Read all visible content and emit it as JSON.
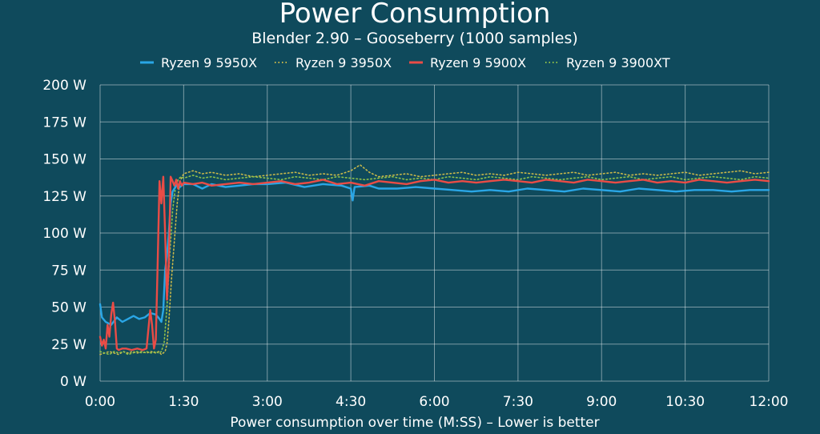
{
  "chart_data": {
    "type": "line",
    "title": "Power Consumption",
    "subtitle": "Blender 2.90 – Gooseberry (1000 samples)",
    "xlabel": "Power consumption over time (M:SS) – Lower is better",
    "ylabel": "",
    "xlim": [
      0,
      720
    ],
    "ylim": [
      0,
      200
    ],
    "grid": true,
    "legend_position": "top",
    "x_ticks": [
      {
        "value": 0,
        "label": "0:00"
      },
      {
        "value": 90,
        "label": "1:30"
      },
      {
        "value": 180,
        "label": "3:00"
      },
      {
        "value": 270,
        "label": "4:30"
      },
      {
        "value": 360,
        "label": "6:00"
      },
      {
        "value": 450,
        "label": "7:30"
      },
      {
        "value": 540,
        "label": "9:00"
      },
      {
        "value": 630,
        "label": "10:30"
      },
      {
        "value": 720,
        "label": "12:00"
      }
    ],
    "y_ticks": [
      {
        "value": 0,
        "label": "0 W"
      },
      {
        "value": 25,
        "label": "25 W"
      },
      {
        "value": 50,
        "label": "50 W"
      },
      {
        "value": 75,
        "label": "75 W"
      },
      {
        "value": 100,
        "label": "100 W"
      },
      {
        "value": 125,
        "label": "125 W"
      },
      {
        "value": 150,
        "label": "150 W"
      },
      {
        "value": 175,
        "label": "175 W"
      },
      {
        "value": 200,
        "label": "200 W"
      }
    ],
    "series": [
      {
        "name": "Ryzen 9 5950X",
        "color": "#2aa6e6",
        "style": "solid",
        "x": [
          0,
          2,
          6,
          12,
          18,
          24,
          30,
          36,
          42,
          48,
          54,
          60,
          64,
          66,
          68,
          70,
          72,
          74,
          76,
          78,
          80,
          83,
          86,
          90,
          100,
          110,
          120,
          135,
          150,
          165,
          180,
          200,
          220,
          240,
          260,
          270,
          272,
          274,
          290,
          300,
          320,
          340,
          360,
          380,
          400,
          420,
          440,
          460,
          480,
          500,
          520,
          540,
          560,
          580,
          600,
          620,
          640,
          660,
          680,
          700,
          720
        ],
        "y": [
          52,
          43,
          40,
          38,
          43,
          40,
          42,
          44,
          42,
          43,
          46,
          45,
          42,
          40,
          48,
          75,
          85,
          100,
          120,
          128,
          130,
          133,
          131,
          133,
          133,
          130,
          133,
          131,
          132,
          133,
          133,
          134,
          131,
          133,
          132,
          130,
          122,
          131,
          132,
          130,
          130,
          131,
          130,
          129,
          128,
          129,
          128,
          130,
          129,
          128,
          130,
          129,
          128,
          130,
          129,
          128,
          129,
          129,
          128,
          129,
          129
        ]
      },
      {
        "name": "Ryzen 9 3950X",
        "color": "#c9b84a",
        "style": "dotted",
        "x": [
          0,
          5,
          10,
          15,
          20,
          25,
          30,
          35,
          40,
          45,
          50,
          55,
          60,
          63,
          66,
          70,
          72,
          74,
          77,
          80,
          83,
          86,
          90,
          100,
          110,
          120,
          135,
          150,
          165,
          180,
          195,
          210,
          225,
          240,
          255,
          270,
          280,
          290,
          300,
          315,
          330,
          345,
          360,
          375,
          390,
          405,
          420,
          435,
          450,
          465,
          480,
          495,
          510,
          525,
          540,
          555,
          570,
          585,
          600,
          615,
          630,
          645,
          660,
          675,
          690,
          705,
          720
        ],
        "y": [
          18,
          19,
          20,
          19,
          18,
          20,
          19,
          20,
          19,
          20,
          19,
          20,
          19,
          20,
          18,
          20,
          25,
          40,
          70,
          95,
          120,
          135,
          140,
          142,
          140,
          141,
          139,
          140,
          138,
          139,
          140,
          141,
          139,
          140,
          139,
          142,
          146,
          141,
          138,
          139,
          140,
          138,
          139,
          140,
          141,
          139,
          140,
          139,
          141,
          140,
          139,
          140,
          141,
          139,
          140,
          141,
          139,
          140,
          139,
          140,
          141,
          139,
          140,
          141,
          142,
          140,
          141
        ]
      },
      {
        "name": "Ryzen 9 5900X",
        "color": "#ea4c46",
        "style": "solid",
        "x": [
          0,
          2,
          4,
          6,
          8,
          10,
          12,
          14,
          16,
          18,
          20,
          24,
          28,
          34,
          40,
          46,
          50,
          54,
          56,
          58,
          60,
          62,
          64,
          66,
          68,
          70,
          72,
          74,
          76,
          78,
          80,
          82,
          84,
          86,
          88,
          90,
          100,
          110,
          120,
          135,
          150,
          165,
          180,
          195,
          210,
          225,
          240,
          255,
          270,
          285,
          300,
          315,
          330,
          345,
          360,
          375,
          390,
          405,
          420,
          435,
          450,
          465,
          480,
          495,
          510,
          525,
          540,
          555,
          570,
          585,
          600,
          615,
          630,
          645,
          660,
          675,
          690,
          705,
          720
        ],
        "y": [
          30,
          24,
          28,
          22,
          38,
          30,
          45,
          53,
          40,
          22,
          21,
          22,
          22,
          21,
          22,
          21,
          22,
          48,
          38,
          22,
          28,
          80,
          135,
          120,
          138,
          100,
          55,
          80,
          138,
          135,
          132,
          136,
          130,
          135,
          132,
          134,
          133,
          134,
          132,
          133,
          134,
          133,
          134,
          135,
          133,
          134,
          136,
          133,
          134,
          132,
          135,
          134,
          133,
          135,
          136,
          134,
          135,
          134,
          135,
          136,
          135,
          134,
          136,
          135,
          134,
          136,
          135,
          134,
          135,
          136,
          134,
          135,
          134,
          136,
          135,
          134,
          135,
          136,
          135
        ]
      },
      {
        "name": "Ryzen 9 3900XT",
        "color": "#8fc04a",
        "style": "dotted",
        "x": [
          0,
          5,
          10,
          15,
          20,
          25,
          30,
          35,
          40,
          45,
          50,
          55,
          60,
          63,
          66,
          69,
          72,
          75,
          78,
          81,
          84,
          87,
          90,
          100,
          110,
          120,
          135,
          150,
          165,
          180,
          195,
          210,
          225,
          240,
          255,
          270,
          285,
          300,
          315,
          330,
          345,
          360,
          375,
          390,
          405,
          420,
          435,
          450,
          465,
          480,
          495,
          510,
          525,
          540,
          555,
          570,
          585,
          600,
          615,
          630,
          645,
          660,
          675,
          690,
          705,
          720
        ],
        "y": [
          20,
          19,
          18,
          20,
          19,
          20,
          18,
          19,
          20,
          19,
          20,
          19,
          20,
          19,
          20,
          26,
          50,
          85,
          115,
          130,
          136,
          138,
          137,
          139,
          137,
          138,
          136,
          137,
          138,
          137,
          136,
          138,
          137,
          136,
          138,
          137,
          136,
          137,
          138,
          136,
          137,
          136,
          138,
          137,
          136,
          138,
          137,
          136,
          138,
          137,
          136,
          137,
          138,
          136,
          137,
          138,
          136,
          137,
          138,
          136,
          137,
          138,
          137,
          136,
          138,
          137
        ]
      }
    ]
  }
}
